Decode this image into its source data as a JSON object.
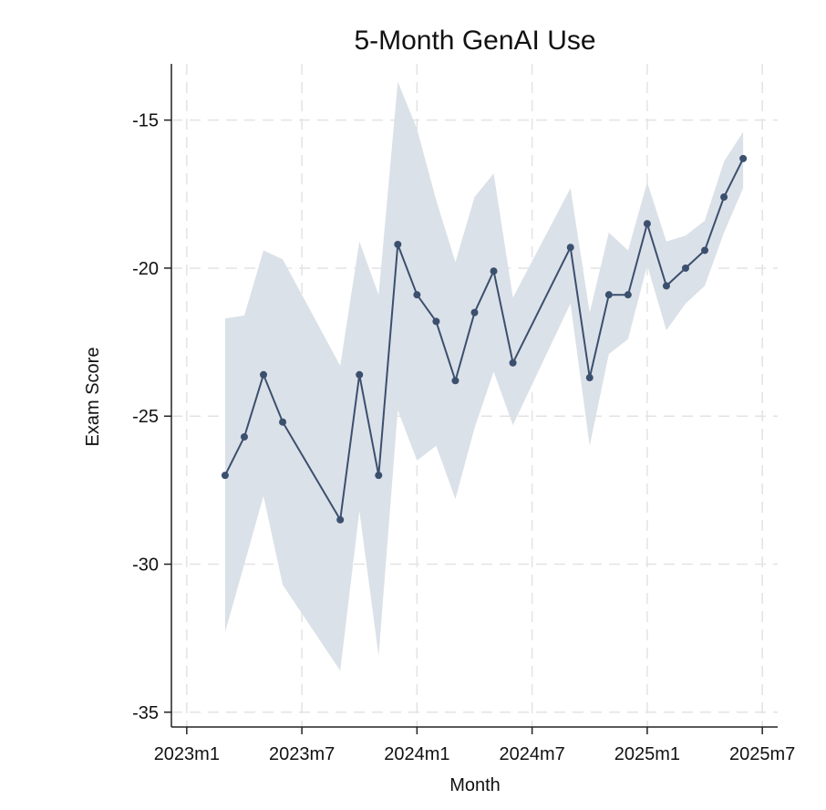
{
  "chart_data": {
    "type": "line",
    "title": "5-Month GenAI Use",
    "xlabel": "Month",
    "ylabel": "Exam Score",
    "x_ticks": [
      {
        "month_index": 0,
        "label": "2023m1"
      },
      {
        "month_index": 6,
        "label": "2023m7"
      },
      {
        "month_index": 12,
        "label": "2024m1"
      },
      {
        "month_index": 18,
        "label": "2024m7"
      },
      {
        "month_index": 24,
        "label": "2025m1"
      },
      {
        "month_index": 30,
        "label": "2025m7"
      }
    ],
    "y_ticks": [
      -15,
      -20,
      -25,
      -30,
      -35
    ],
    "xlim": [
      -0.8,
      30.8
    ],
    "ylim": [
      -35.5,
      -13.1
    ],
    "grid": true,
    "colors": {
      "line": "#3b4f6e",
      "band": "#dbe1e8",
      "grid": "#e3e3e3"
    },
    "series": [
      {
        "points": [
          {
            "x": 2,
            "y": -27.0,
            "lo": -32.3,
            "hi": -21.7
          },
          {
            "x": 3,
            "y": -25.7,
            "lo": -30.0,
            "hi": -21.6
          },
          {
            "x": 4,
            "y": -23.6,
            "lo": -27.7,
            "hi": -19.4
          },
          {
            "x": 5,
            "y": -25.2,
            "lo": -30.7,
            "hi": -19.7
          },
          {
            "x": 8,
            "y": -28.5,
            "lo": -33.6,
            "hi": -23.3
          },
          {
            "x": 9,
            "y": -23.6,
            "lo": -28.2,
            "hi": -19.1
          },
          {
            "x": 10,
            "y": -27.0,
            "lo": -33.1,
            "hi": -20.9
          },
          {
            "x": 11,
            "y": -19.2,
            "lo": -24.8,
            "hi": -13.7
          },
          {
            "x": 12,
            "y": -20.9,
            "lo": -26.5,
            "hi": -15.3
          },
          {
            "x": 13,
            "y": -21.8,
            "lo": -26.0,
            "hi": -17.7
          },
          {
            "x": 14,
            "y": -23.8,
            "lo": -27.8,
            "hi": -19.8
          },
          {
            "x": 15,
            "y": -21.5,
            "lo": -25.4,
            "hi": -17.6
          },
          {
            "x": 16,
            "y": -20.1,
            "lo": -23.5,
            "hi": -16.8
          },
          {
            "x": 17,
            "y": -23.2,
            "lo": -25.3,
            "hi": -21.0
          },
          {
            "x": 20,
            "y": -19.3,
            "lo": -21.2,
            "hi": -17.3
          },
          {
            "x": 21,
            "y": -23.7,
            "lo": -26.0,
            "hi": -21.5
          },
          {
            "x": 22,
            "y": -20.9,
            "lo": -22.9,
            "hi": -18.8
          },
          {
            "x": 23,
            "y": -20.9,
            "lo": -22.4,
            "hi": -19.4
          },
          {
            "x": 24,
            "y": -18.5,
            "lo": -19.9,
            "hi": -17.1
          },
          {
            "x": 25,
            "y": -20.6,
            "lo": -22.1,
            "hi": -19.1
          },
          {
            "x": 26,
            "y": -20.0,
            "lo": -21.2,
            "hi": -18.9
          },
          {
            "x": 27,
            "y": -19.4,
            "lo": -20.6,
            "hi": -18.4
          },
          {
            "x": 28,
            "y": -17.6,
            "lo": -18.8,
            "hi": -16.4
          },
          {
            "x": 29,
            "y": -16.3,
            "lo": -17.3,
            "hi": -15.4
          }
        ]
      }
    ]
  }
}
